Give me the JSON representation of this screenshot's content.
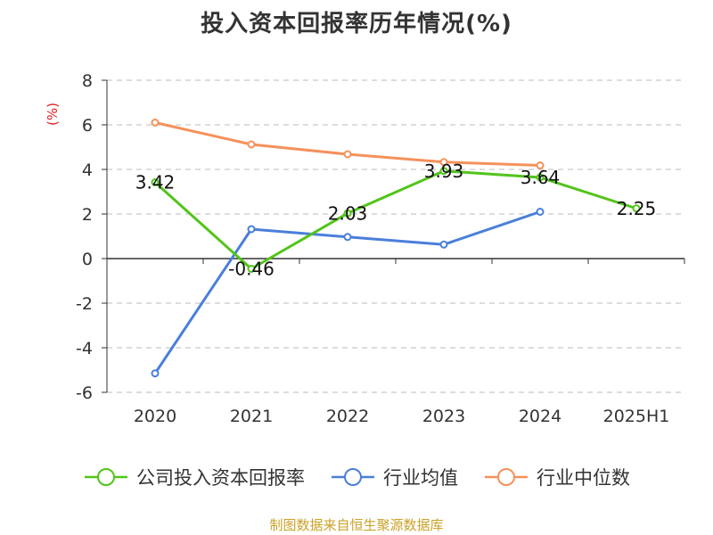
{
  "chart_data": {
    "type": "line",
    "title": "投入资本回报率历年情况(%)",
    "ylabel": "(%)",
    "categories": [
      "2020",
      "2021",
      "2022",
      "2023",
      "2024",
      "2025H1"
    ],
    "ylim": [
      -6,
      8
    ],
    "yticks": [
      8,
      6,
      4,
      2,
      0,
      -2,
      -4,
      -6
    ],
    "grid": true,
    "legend_position": "bottom",
    "series": [
      {
        "name": "公司投入资本回报率",
        "color": "#52c41a",
        "values": [
          3.42,
          -0.46,
          2.03,
          3.93,
          3.64,
          2.25
        ],
        "labels": [
          "3.42",
          "-0.46",
          "2.03",
          "3.93",
          "3.64",
          "2.25"
        ]
      },
      {
        "name": "行业均值",
        "color": "#4a7fdb",
        "values": [
          -5.15,
          1.32,
          0.97,
          0.63,
          2.1,
          null
        ]
      },
      {
        "name": "行业中位数",
        "color": "#f5915b",
        "values": [
          6.1,
          5.12,
          4.68,
          4.33,
          4.18,
          null
        ]
      }
    ]
  },
  "source": "制图数据来自恒生聚源数据库"
}
